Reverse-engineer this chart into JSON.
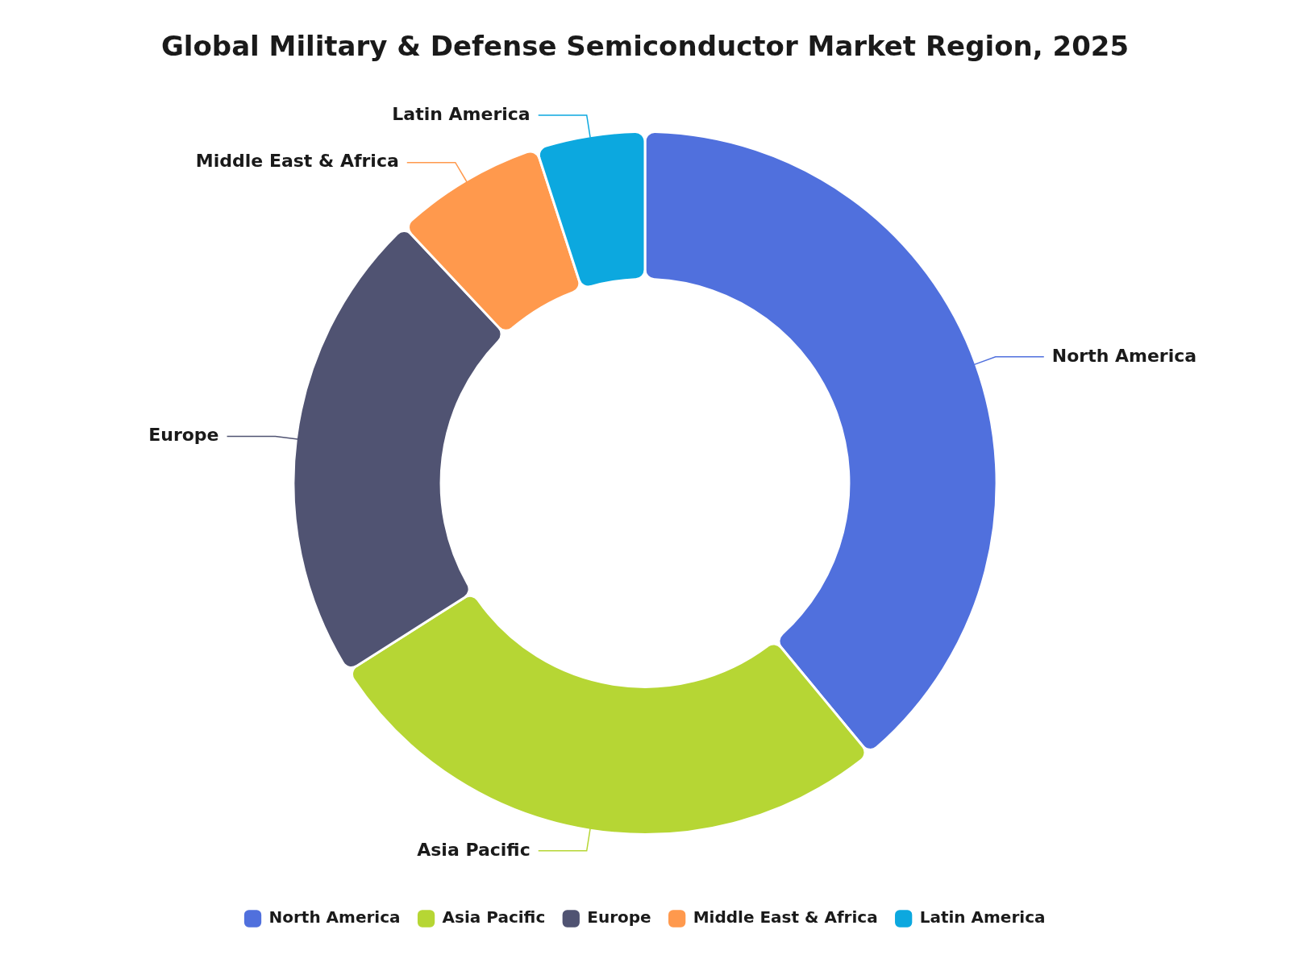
{
  "chart_data": {
    "type": "donut",
    "title": "Global Military & Defense Semiconductor Market Region, 2025",
    "categories": [
      "North America",
      "Asia Pacific",
      "Europe",
      "Middle East & Africa",
      "Latin America"
    ],
    "values": [
      39,
      27,
      22,
      7,
      5
    ],
    "colors": [
      "#5070dd",
      "#b6d634",
      "#505372",
      "#ff994d",
      "#0ca8df"
    ],
    "legend": "bottom"
  }
}
